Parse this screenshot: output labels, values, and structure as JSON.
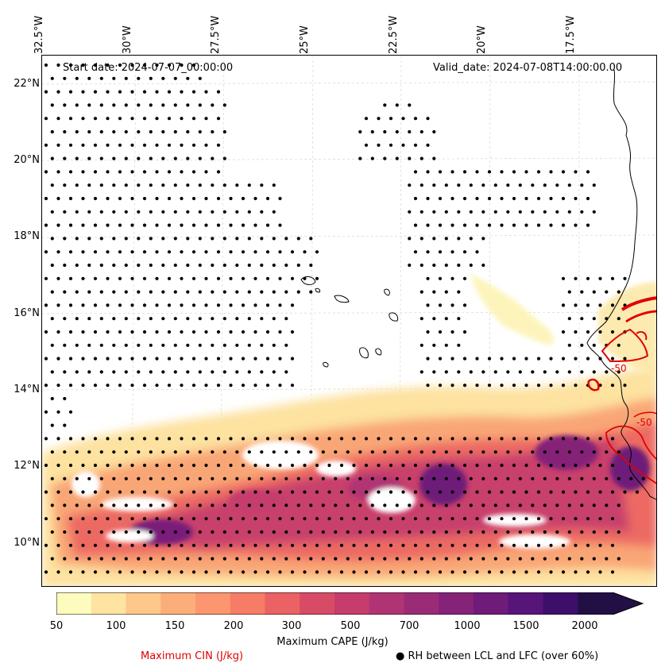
{
  "map": {
    "start_date": "Start date: 2024-07-07_00:00:00",
    "valid_date": "Valid_date: 2024-07-08T14:00:00.00",
    "lon_labels": [
      "32.5°W",
      "30°W",
      "27.5°W",
      "25°W",
      "22.5°W",
      "20°W",
      "17.5°W"
    ],
    "lat_labels": [
      "22°N",
      "20°N",
      "18°N",
      "16°N",
      "14°N",
      "12°N",
      "10°N"
    ],
    "contour_labels": [
      "-50",
      "-50"
    ]
  },
  "colorbar": {
    "title": "Maximum CAPE (J/kg)",
    "tick_labels": [
      "50",
      "100",
      "150",
      "200",
      "300",
      "500",
      "700",
      "1000",
      "1500",
      "2000"
    ],
    "colors": [
      "#fefbbf",
      "#fee3a1",
      "#fdc88a",
      "#fcae7a",
      "#fb9670",
      "#f67c66",
      "#ea6263",
      "#d84b66",
      "#c53c6d",
      "#b03473",
      "#9a2c77",
      "#852378",
      "#6e1b79",
      "#571479",
      "#3d0f6a",
      "#221045"
    ]
  },
  "legend": {
    "cin": "Maximum CIN (J/kg)",
    "rh": "● RH between LCL and LFC (over 60%)",
    "cin_color": "#e00000"
  }
}
